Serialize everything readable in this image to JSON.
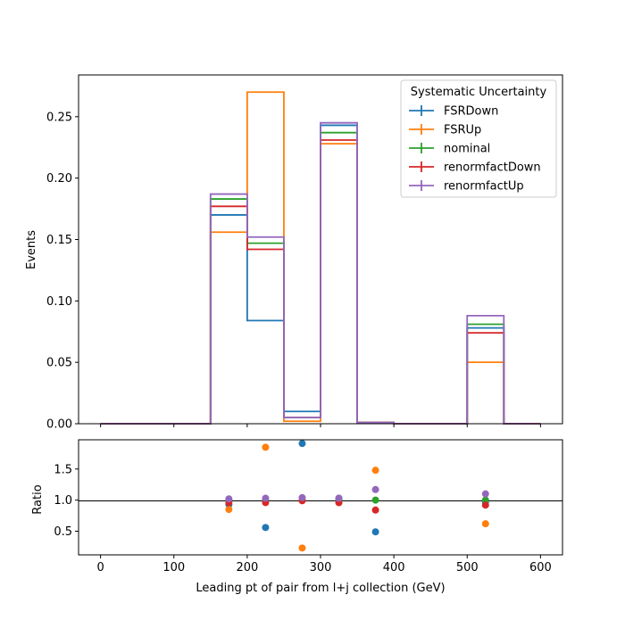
{
  "chart_data": {
    "type": "histogram-ratio",
    "bin_edges": [
      0,
      50,
      100,
      150,
      200,
      250,
      300,
      350,
      400,
      450,
      500,
      550,
      600
    ],
    "top_panel": {
      "ylabel": "Events",
      "ylim": [
        0,
        0.284
      ],
      "yticks": [
        0.0,
        0.05,
        0.1,
        0.15,
        0.2,
        0.25
      ],
      "ytick_labels": [
        "0.00",
        "0.05",
        "0.10",
        "0.15",
        "0.20",
        "0.25"
      ]
    },
    "ratio_panel": {
      "ylabel": "Ratio",
      "ylim": [
        0.12,
        1.97
      ],
      "yticks": [
        0.5,
        1.0,
        1.5
      ],
      "ytick_labels": [
        "0.5",
        "1.0",
        "1.5"
      ],
      "reference_line": 1.0,
      "x": [
        175,
        225,
        275,
        325,
        375,
        525
      ]
    },
    "xlabel": "Leading pt of pair from l+j collection (GeV)",
    "xlim": [
      -30,
      630
    ],
    "xticks": [
      0,
      100,
      200,
      300,
      400,
      500,
      600
    ],
    "xtick_labels": [
      "0",
      "100",
      "200",
      "300",
      "400",
      "500",
      "600"
    ],
    "legend": {
      "title": "Systematic Uncertainty",
      "placement": "upper right"
    },
    "series": [
      {
        "name": "FSRDown",
        "color": "#1f77b4",
        "values": [
          0,
          0,
          0,
          0.17,
          0.084,
          0.01,
          0.243,
          0.001,
          0,
          0,
          0.078,
          0
        ],
        "ratio": [
          0.93,
          0.56,
          1.91,
          1.03,
          0.49,
          0.97
        ]
      },
      {
        "name": "FSRUp",
        "color": "#ff7f0e",
        "values": [
          0,
          0,
          0,
          0.156,
          0.27,
          0.002,
          0.228,
          0.001,
          0,
          0,
          0.05,
          0
        ],
        "ratio": [
          0.85,
          1.85,
          0.23,
          0.96,
          1.48,
          0.62
        ]
      },
      {
        "name": "nominal",
        "color": "#2ca02c",
        "values": [
          0,
          0,
          0,
          0.183,
          0.147,
          0.005,
          0.237,
          0.001,
          0,
          0,
          0.081,
          0
        ],
        "ratio": [
          1.0,
          1.0,
          1.0,
          1.0,
          1.0,
          1.0
        ]
      },
      {
        "name": "renormfactDown",
        "color": "#d62728",
        "values": [
          0,
          0,
          0,
          0.177,
          0.142,
          0.005,
          0.231,
          0.001,
          0,
          0,
          0.074,
          0
        ],
        "ratio": [
          0.96,
          0.96,
          0.99,
          0.96,
          0.84,
          0.92
        ]
      },
      {
        "name": "renormfactUp",
        "color": "#9467bd",
        "values": [
          0,
          0,
          0,
          0.187,
          0.152,
          0.005,
          0.245,
          0.001,
          0,
          0,
          0.088,
          0
        ],
        "ratio": [
          1.02,
          1.03,
          1.04,
          1.03,
          1.17,
          1.1
        ]
      }
    ]
  }
}
